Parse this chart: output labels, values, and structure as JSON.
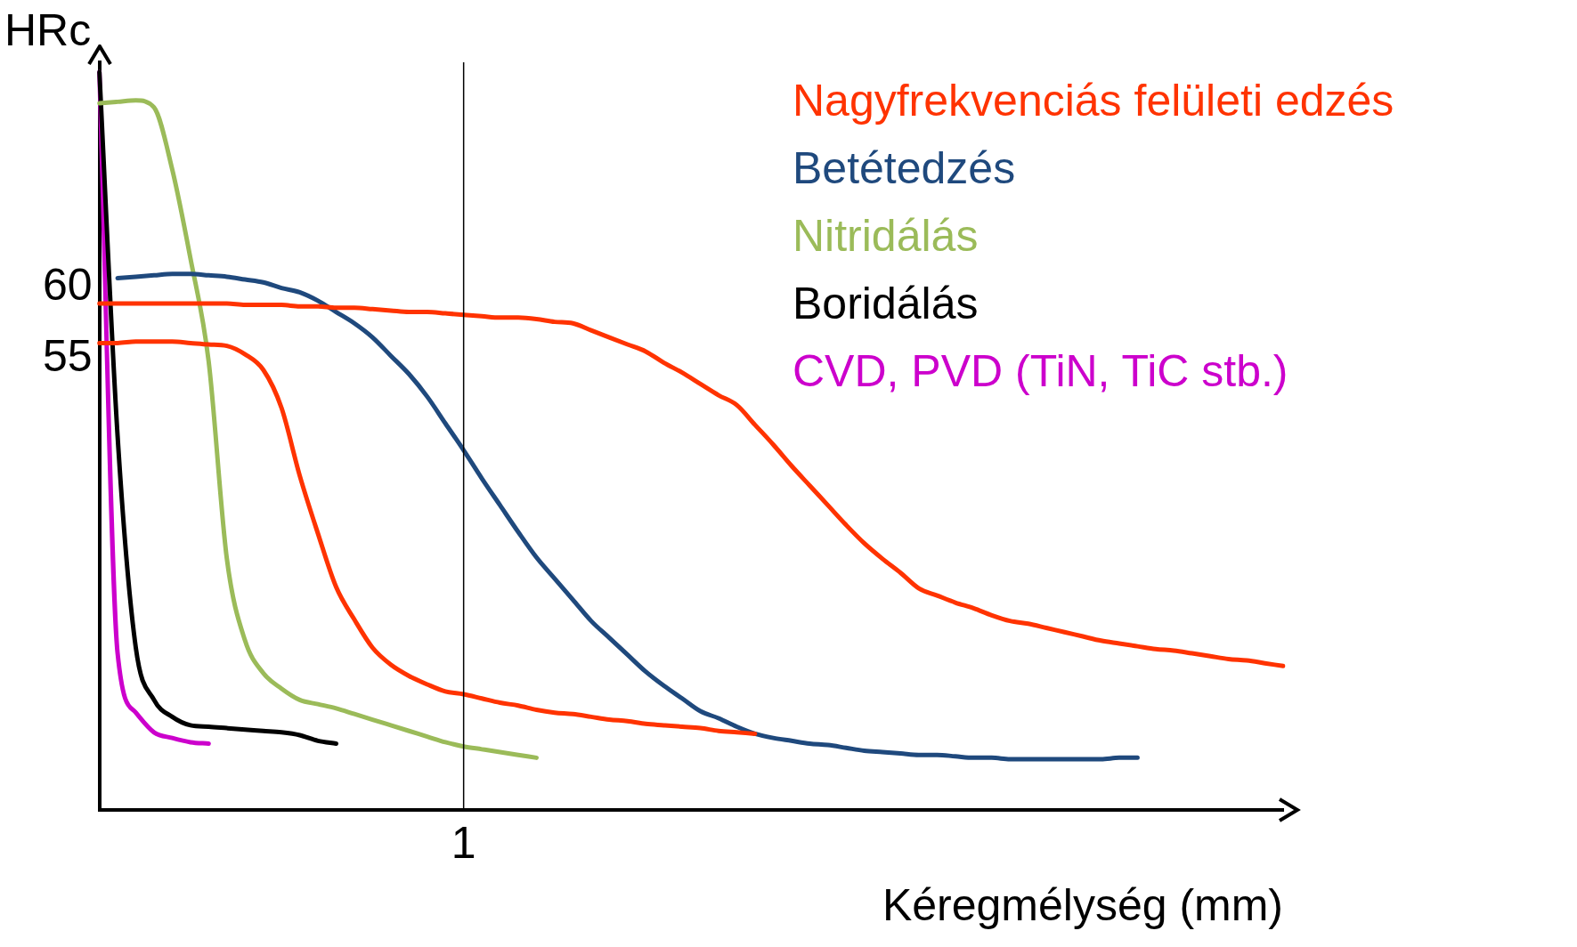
{
  "chart_data": {
    "type": "line",
    "xlabel": "Kéregmélység (mm)",
    "ylabel": "HRc",
    "ylim": [
      23,
      76
    ],
    "yticks": [
      55,
      60
    ],
    "grid": false,
    "marker": "none",
    "line_style": "solid",
    "categories": [
      null,
      null,
      null,
      null,
      null,
      null,
      null,
      null,
      null,
      null,
      null,
      null,
      null,
      null,
      null,
      null,
      null,
      null,
      null,
      null,
      "1",
      null,
      null,
      null,
      null,
      null,
      null,
      null,
      null,
      null,
      null,
      null,
      null,
      null,
      null,
      null,
      null,
      null,
      null,
      null,
      null,
      null,
      null,
      null,
      null,
      null,
      null,
      null,
      null,
      null,
      null,
      null,
      null,
      null,
      null,
      null,
      null,
      null,
      null,
      null,
      null,
      null,
      null,
      null,
      null,
      null
    ],
    "ref_lines": [
      {
        "axis": "x",
        "value": "1",
        "color": "#000000"
      }
    ],
    "series": [
      {
        "name": "Nagyfrekvenciás felületi edzés",
        "color": "#ff3300",
        "values": [
          58.9,
          58.9,
          58.9,
          58.9,
          58.9,
          58.9,
          58.9,
          58.9,
          58.8,
          58.8,
          58.8,
          58.7,
          58.7,
          58.6,
          58.6,
          58.5,
          58.4,
          58.3,
          58.3,
          58.2,
          58.1,
          58.0,
          57.9,
          57.9,
          57.8,
          57.6,
          57.5,
          57.0,
          56.5,
          56.0,
          55.5,
          54.7,
          54.0,
          53.2,
          52.4,
          51.7,
          50.3,
          48.9,
          47.4,
          46.0,
          44.6,
          43.2,
          41.9,
          40.8,
          39.8,
          38.7,
          38.2,
          37.7,
          37.3,
          36.8,
          36.4,
          36.2,
          35.9,
          35.6,
          35.3,
          35.0,
          34.8,
          34.6,
          34.4,
          34.3,
          34.1,
          33.9,
          33.7,
          33.6,
          33.4,
          33.2
        ]
      },
      {
        "color": "#ff3300",
        "values": [
          56.1,
          56.1,
          56.2,
          56.2,
          56.2,
          56.1,
          56.0,
          55.9,
          55.3,
          54.2,
          51.5,
          46.7,
          42.6,
          38.8,
          36.5,
          34.5,
          33.3,
          32.5,
          31.9,
          31.4,
          31.2,
          30.9,
          30.6,
          30.4,
          30.1,
          29.9,
          29.8,
          29.6,
          29.4,
          29.3,
          29.1,
          29.0,
          28.9,
          28.8,
          28.6,
          28.5,
          28.4,
          null,
          null,
          null,
          null,
          null,
          null,
          null,
          null,
          null,
          null,
          null,
          null,
          null,
          null,
          null,
          null,
          null,
          null,
          null,
          null,
          null,
          null,
          null,
          null,
          null,
          null,
          null,
          null,
          null
        ]
      },
      {
        "name": "Betétedzés",
        "color": "#1f497d",
        "values": [
          null,
          60.7,
          60.8,
          60.9,
          61.0,
          61.0,
          60.9,
          60.8,
          60.6,
          60.4,
          60.0,
          59.7,
          59.1,
          58.3,
          57.5,
          56.5,
          55.2,
          53.9,
          52.3,
          50.4,
          48.5,
          46.5,
          44.6,
          42.7,
          40.9,
          39.4,
          37.9,
          36.4,
          35.2,
          34.0,
          32.8,
          31.8,
          30.9,
          30.0,
          29.5,
          28.9,
          28.4,
          28.1,
          27.9,
          27.7,
          27.6,
          27.4,
          27.2,
          27.1,
          27.0,
          26.9,
          26.9,
          26.8,
          26.7,
          26.7,
          26.6,
          26.6,
          26.6,
          26.6,
          26.6,
          26.6,
          26.7,
          26.7,
          null,
          null,
          null,
          null,
          null,
          null,
          null,
          null
        ]
      },
      {
        "name": "Nitridálás",
        "color": "#9bbb59",
        "values": [
          73.1,
          73.2,
          73.3,
          72.8,
          68.4,
          62.1,
          54.8,
          40.8,
          35.0,
          32.7,
          31.6,
          30.8,
          30.5,
          30.2,
          29.8,
          29.4,
          29.0,
          28.6,
          28.2,
          27.8,
          27.5,
          27.3,
          27.1,
          26.9,
          26.7,
          null,
          null,
          null,
          null,
          null,
          null,
          null,
          null,
          null,
          null,
          null,
          null,
          null,
          null,
          null,
          null,
          null,
          null,
          null,
          null,
          null,
          null,
          null,
          null,
          null,
          null,
          null,
          null,
          null,
          null,
          null,
          null,
          null,
          null,
          null,
          null,
          null,
          null,
          null,
          null,
          null
        ]
      },
      {
        "name": "Boridálás",
        "color": "#000000",
        "values": [
          75.3,
          49.5,
          34.5,
          30.8,
          29.6,
          29.0,
          28.9,
          28.8,
          28.7,
          28.6,
          28.5,
          28.3,
          27.9,
          27.7,
          null,
          null,
          null,
          null,
          null,
          null,
          null,
          null,
          null,
          null,
          null,
          null,
          null,
          null,
          null,
          null,
          null,
          null,
          null,
          null,
          null,
          null,
          null,
          null,
          null,
          null,
          null,
          null,
          null,
          null,
          null,
          null,
          null,
          null,
          null,
          null,
          null,
          null,
          null,
          null,
          null,
          null,
          null,
          null,
          null,
          null,
          null,
          null,
          null,
          null,
          null,
          null
        ]
      },
      {
        "name": "CVD, PVD (TiN, TiC stb.)",
        "color": "#cc00cc",
        "values": [
          75.3,
          34.1,
          29.9,
          28.5,
          28.1,
          27.8,
          27.7,
          null,
          null,
          null,
          null,
          null,
          null,
          null,
          null,
          null,
          null,
          null,
          null,
          null,
          null,
          null,
          null,
          null,
          null,
          null,
          null,
          null,
          null,
          null,
          null,
          null,
          null,
          null,
          null,
          null,
          null,
          null,
          null,
          null,
          null,
          null,
          null,
          null,
          null,
          null,
          null,
          null,
          null,
          null,
          null,
          null,
          null,
          null,
          null,
          null,
          null,
          null,
          null,
          null,
          null,
          null,
          null,
          null,
          null,
          null
        ]
      }
    ]
  }
}
